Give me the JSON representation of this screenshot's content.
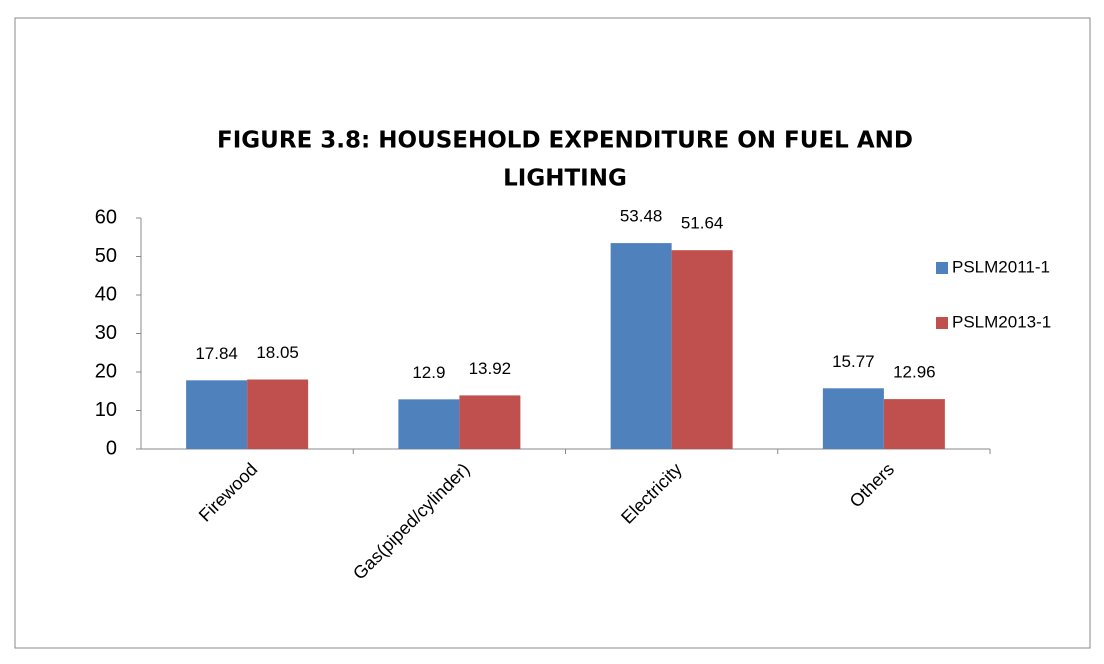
{
  "chart_data": {
    "type": "bar",
    "title": [
      "FIGURE 3.8: HOUSEHOLD EXPENDITURE ON FUEL AND",
      "LIGHTING"
    ],
    "categories": [
      "Firewood",
      "Gas(piped/cylinder)",
      "Electricity",
      "Others"
    ],
    "series": [
      {
        "name": "PSLM2011-1",
        "color": "#4f81bd",
        "values": [
          17.84,
          12.9,
          53.48,
          15.77
        ]
      },
      {
        "name": "PSLM2013-1",
        "color": "#c0504d",
        "values": [
          18.05,
          13.92,
          51.64,
          12.96
        ]
      }
    ],
    "ylim": [
      0,
      60
    ],
    "yticks": [
      0,
      10,
      20,
      30,
      40,
      50,
      60
    ],
    "grid": false,
    "legend": "right"
  }
}
